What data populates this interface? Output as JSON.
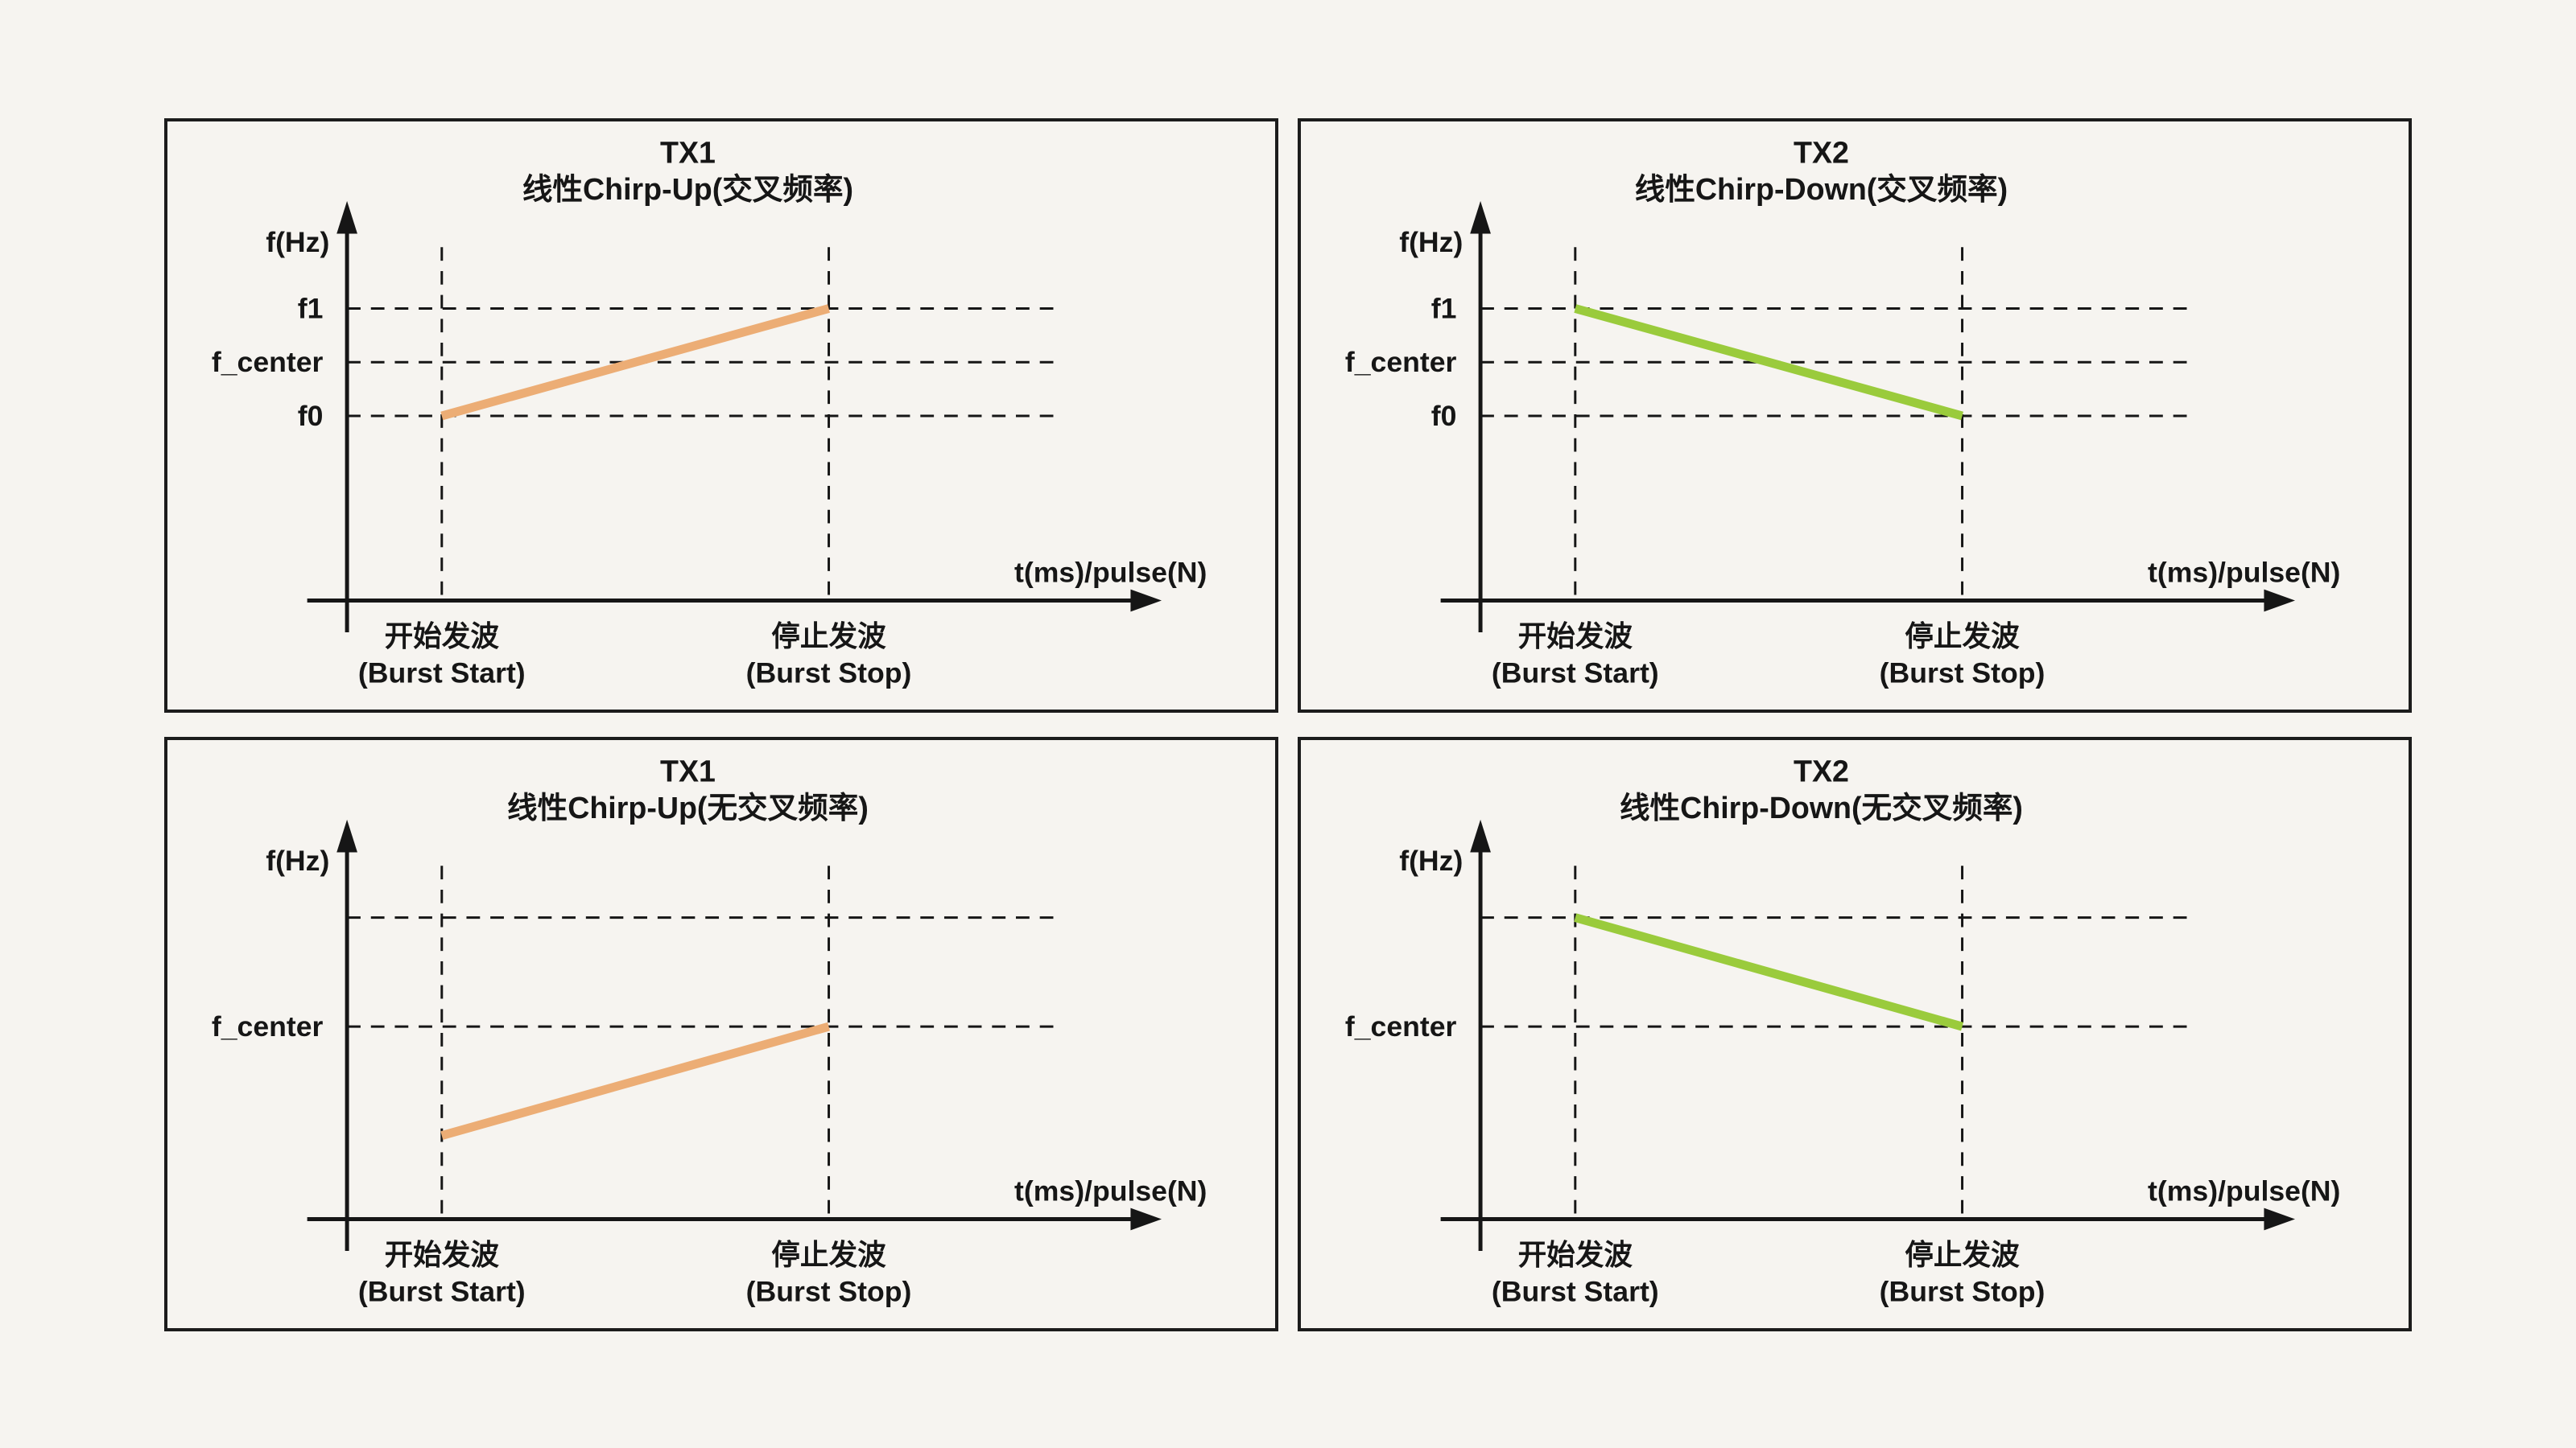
{
  "page": {
    "background_color": "#F6F4F0",
    "panel_border_color": "#1C1C1C",
    "text_color": "#161616"
  },
  "colors": {
    "tx1_orange": "#ECAD75",
    "tx2_green": "#9ACB3C"
  },
  "chart_data": [
    {
      "type": "line",
      "grid_position": "top-left",
      "transmitter": "TX1",
      "title": [
        "TX1",
        "线性Chirp-Up(交叉频率)"
      ],
      "color": "#ECAD75",
      "ylabel": "f(Hz)",
      "xlabel": "t(ms)/pulse(N)",
      "x_ticks": [
        {
          "zh": "开始发波",
          "en": "(Burst Start)"
        },
        {
          "zh": "停止发波",
          "en": "(Burst Stop)"
        }
      ],
      "freq_gridlines": [
        {
          "label": "f1",
          "level": 2
        },
        {
          "label": "f_center",
          "level": 1
        },
        {
          "label": "f0",
          "level": 0
        }
      ],
      "series": [
        {
          "name": "TX1 linear chirp-up (crossed frequency)",
          "points": [
            {
              "x": "Burst Start",
              "f": "f0",
              "level": 0
            },
            {
              "x": "Burst Stop",
              "f": "f1",
              "level": 2
            }
          ]
        }
      ]
    },
    {
      "type": "line",
      "grid_position": "top-right",
      "transmitter": "TX2",
      "title": [
        "TX2",
        "线性Chirp-Down(交叉频率)"
      ],
      "color": "#9ACB3C",
      "ylabel": "f(Hz)",
      "xlabel": "t(ms)/pulse(N)",
      "x_ticks": [
        {
          "zh": "开始发波",
          "en": "(Burst Start)"
        },
        {
          "zh": "停止发波",
          "en": "(Burst Stop)"
        }
      ],
      "freq_gridlines": [
        {
          "label": "f1",
          "level": 2
        },
        {
          "label": "f_center",
          "level": 1
        },
        {
          "label": "f0",
          "level": 0
        }
      ],
      "series": [
        {
          "name": "TX2 linear chirp-down (crossed frequency)",
          "points": [
            {
              "x": "Burst Start",
              "f": "f1",
              "level": 2
            },
            {
              "x": "Burst Stop",
              "f": "f0",
              "level": 0
            }
          ]
        }
      ]
    },
    {
      "type": "line",
      "grid_position": "bottom-left",
      "transmitter": "TX1",
      "title": [
        "TX1",
        "线性Chirp-Up(无交叉频率)"
      ],
      "color": "#ECAD75",
      "ylabel": "f(Hz)",
      "xlabel": "t(ms)/pulse(N)",
      "x_ticks": [
        {
          "zh": "开始发波",
          "en": "(Burst Start)"
        },
        {
          "zh": "停止发波",
          "en": "(Burst Stop)"
        }
      ],
      "freq_gridlines": [
        {
          "label": "",
          "level": 2
        },
        {
          "label": "f_center",
          "level": 1
        }
      ],
      "series": [
        {
          "name": "TX1 linear chirp-up (no frequency crossing)",
          "points": [
            {
              "x": "Burst Start",
              "f": "",
              "level": 0
            },
            {
              "x": "Burst Stop",
              "f": "f_center",
              "level": 1
            }
          ]
        }
      ]
    },
    {
      "type": "line",
      "grid_position": "bottom-right",
      "transmitter": "TX2",
      "title": [
        "TX2",
        "线性Chirp-Down(无交叉频率)"
      ],
      "color": "#9ACB3C",
      "ylabel": "f(Hz)",
      "xlabel": "t(ms)/pulse(N)",
      "x_ticks": [
        {
          "zh": "开始发波",
          "en": "(Burst Start)"
        },
        {
          "zh": "停止发波",
          "en": "(Burst Stop)"
        }
      ],
      "freq_gridlines": [
        {
          "label": "",
          "level": 2
        },
        {
          "label": "f_center",
          "level": 1
        }
      ],
      "series": [
        {
          "name": "TX2 linear chirp-down (no frequency crossing)",
          "points": [
            {
              "x": "Burst Start",
              "f": "",
              "level": 2
            },
            {
              "x": "Burst Stop",
              "f": "f_center",
              "level": 1
            }
          ]
        }
      ]
    }
  ]
}
